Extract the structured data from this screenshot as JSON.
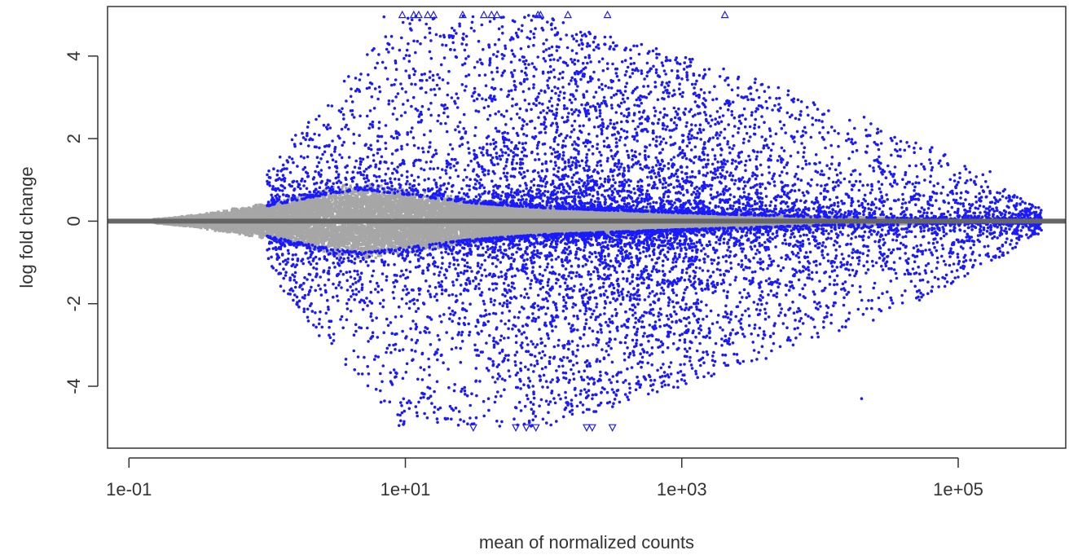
{
  "chart_data": {
    "type": "scatter",
    "title": "",
    "xlabel": "mean of normalized counts",
    "ylabel": "log fold change",
    "x_scale": "log10",
    "xlim": [
      0.07,
      600000
    ],
    "ylim": [
      -5.5,
      5.2
    ],
    "x_ticks": [
      {
        "value": 0.1,
        "label": "1e-01"
      },
      {
        "value": 10,
        "label": "1e+01"
      },
      {
        "value": 1000,
        "label": "1e+03"
      },
      {
        "value": 100000,
        "label": "1e+05"
      }
    ],
    "y_ticks": [
      {
        "value": -4,
        "label": "-4"
      },
      {
        "value": -2,
        "label": "-2"
      },
      {
        "value": 0,
        "label": "0"
      },
      {
        "value": 2,
        "label": "2"
      },
      {
        "value": 4,
        "label": "4"
      }
    ],
    "reference_line_y": 0,
    "grid": false,
    "legend": "none",
    "colors": {
      "significant": "#1a1aff",
      "non_significant": "#a6a6a6",
      "zero_line": "#666666",
      "axes": "#333333"
    },
    "series": [
      {
        "role": "non-significant",
        "color": "#a6a6a6",
        "description_points": "dense cloud around zero; spread widens from x=0.15 to about x=5, then narrows toward x=1e4",
        "envelope": [
          {
            "x": 0.15,
            "y": 0.05
          },
          {
            "x": 0.3,
            "y": 0.15
          },
          {
            "x": 1,
            "y": 0.45
          },
          {
            "x": 3,
            "y": 0.85
          },
          {
            "x": 5,
            "y": 0.95
          },
          {
            "x": 10,
            "y": 0.8
          },
          {
            "x": 30,
            "y": 0.55
          },
          {
            "x": 100,
            "y": 0.4
          },
          {
            "x": 1000,
            "y": 0.25
          },
          {
            "x": 10000,
            "y": 0.12
          },
          {
            "x": 100000,
            "y": 0.05
          }
        ]
      },
      {
        "role": "significant",
        "color": "#1a1aff",
        "description_points": "differentially expressed genes; spread roughly from x=1 to x=4e5 with |log fold change| up to 5",
        "density_profile": [
          {
            "x": 1,
            "max_lfc": 1.2
          },
          {
            "x": 2,
            "max_lfc": 2.5
          },
          {
            "x": 5,
            "max_lfc": 4.0
          },
          {
            "x": 10,
            "max_lfc": 5.0
          },
          {
            "x": 100,
            "max_lfc": 5.0
          },
          {
            "x": 1000,
            "max_lfc": 4.0
          },
          {
            "x": 10000,
            "max_lfc": 3.0
          },
          {
            "x": 100000,
            "max_lfc": 1.5
          },
          {
            "x": 400000,
            "max_lfc": 0.3
          }
        ],
        "highlight_points": [
          {
            "x": 65000,
            "y": 1.3
          },
          {
            "x": 170000,
            "y": 1.2
          },
          {
            "x": 210000,
            "y": 0.6
          },
          {
            "x": 20000,
            "y": -4.3
          },
          {
            "x": 380000,
            "y": 0.15
          },
          {
            "x": 9,
            "y": -4.95
          },
          {
            "x": 7,
            "y": 4.95
          }
        ]
      },
      {
        "role": "clipped-up",
        "marker": "triangle-up",
        "color": "#1a1aff",
        "points": [
          {
            "x": 9.5,
            "y": 5
          },
          {
            "x": 11.5,
            "y": 5
          },
          {
            "x": 12.5,
            "y": 5
          },
          {
            "x": 14.5,
            "y": 5
          },
          {
            "x": 16,
            "y": 5
          },
          {
            "x": 26,
            "y": 5
          },
          {
            "x": 37,
            "y": 5
          },
          {
            "x": 42,
            "y": 5
          },
          {
            "x": 46,
            "y": 5
          },
          {
            "x": 91,
            "y": 5
          },
          {
            "x": 95,
            "y": 5
          },
          {
            "x": 150,
            "y": 5
          },
          {
            "x": 290,
            "y": 5
          },
          {
            "x": 2050,
            "y": 5
          }
        ]
      },
      {
        "role": "clipped-down",
        "marker": "triangle-down",
        "color": "#1a1aff",
        "points": [
          {
            "x": 31,
            "y": -5
          },
          {
            "x": 63,
            "y": -5
          },
          {
            "x": 75,
            "y": -5
          },
          {
            "x": 88,
            "y": -5
          },
          {
            "x": 205,
            "y": -5
          },
          {
            "x": 225,
            "y": -5
          },
          {
            "x": 315,
            "y": -5
          }
        ]
      }
    ]
  }
}
